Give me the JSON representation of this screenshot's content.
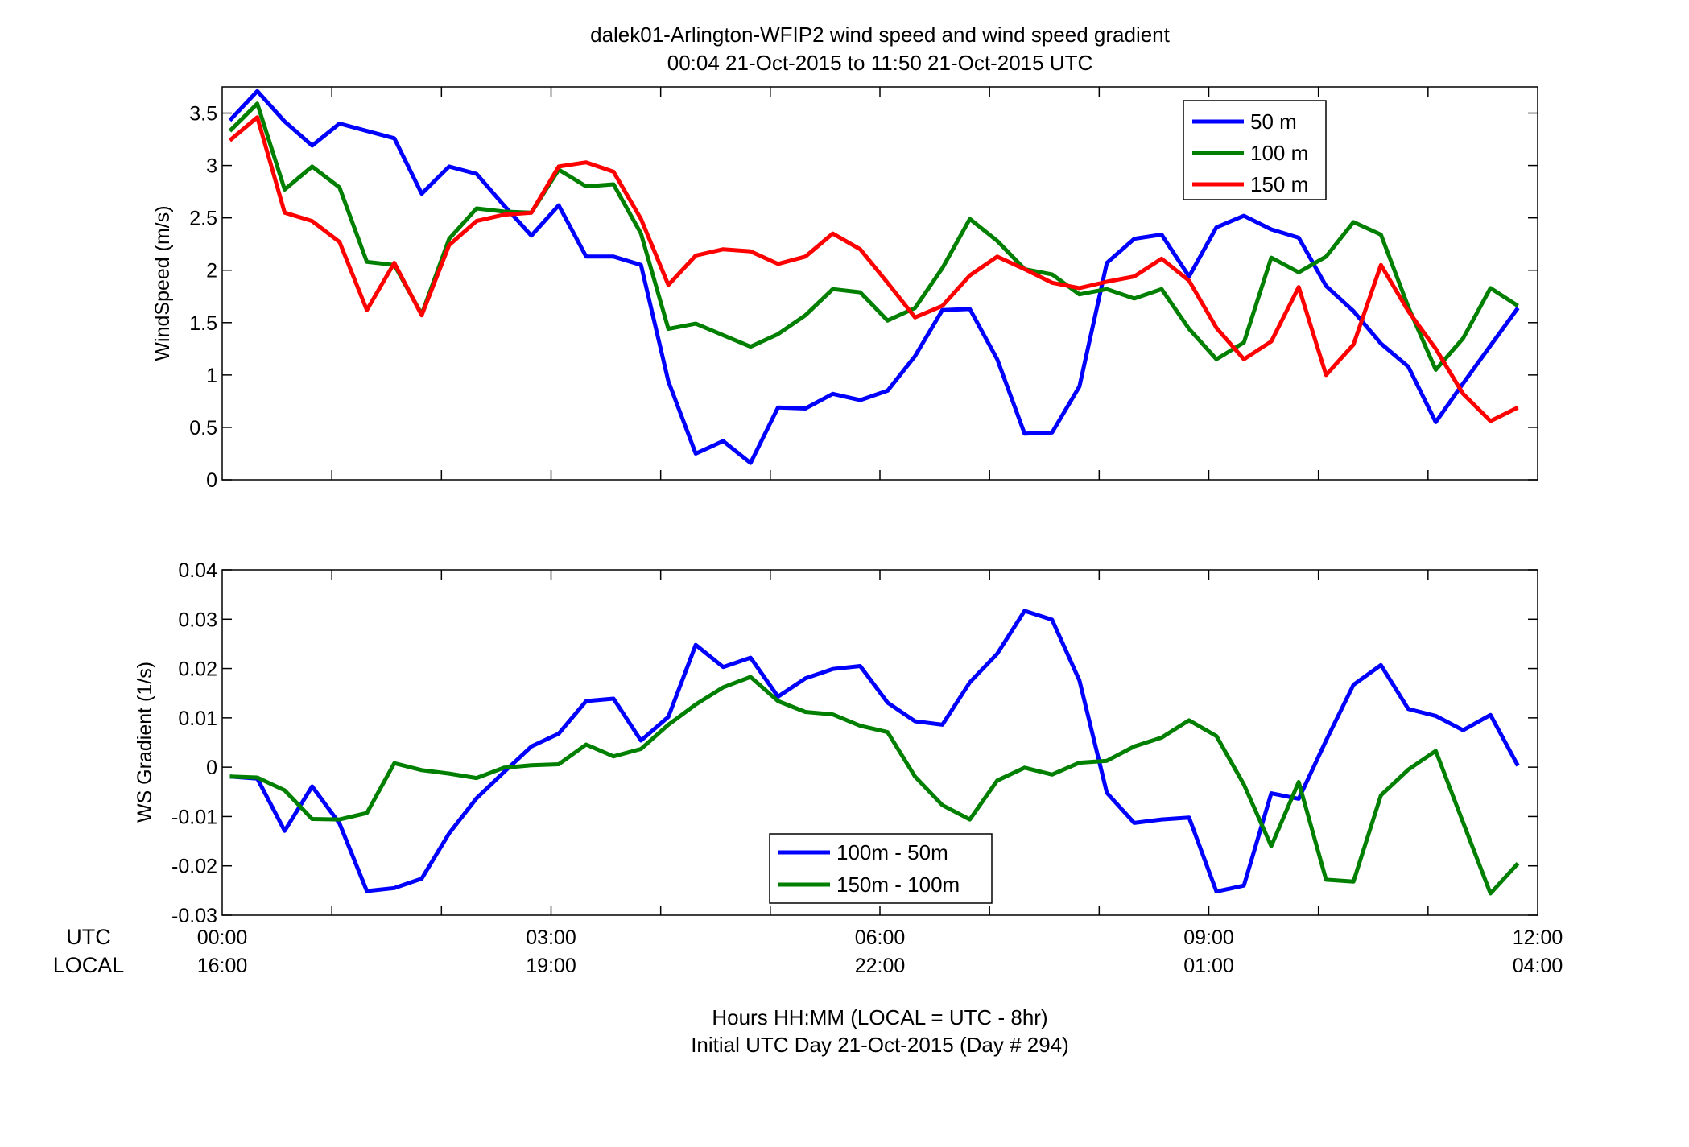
{
  "figure": {
    "title_line1": "dalek01-Arlington-WFIP2  wind speed and wind speed gradient",
    "title_line2": "00:04 21-Oct-2015 to 11:50 21-Oct-2015  UTC",
    "utc_label": "UTC",
    "local_label": "LOCAL",
    "footer_line1": "Hours HH:MM  (LOCAL = UTC - 8hr)",
    "footer_line2": "Initial UTC Day 21-Oct-2015 (Day # 294)",
    "x_ticks_utc": [
      "00:00",
      "03:00",
      "06:00",
      "09:00",
      "12:00"
    ],
    "x_ticks_local": [
      "16:00",
      "19:00",
      "22:00",
      "01:00",
      "04:00"
    ],
    "colors": {
      "blue": "#0000ff",
      "green": "#007f00",
      "red": "#ff0000"
    }
  },
  "chart_data": [
    {
      "type": "line",
      "ylabel": "WindSpeed (m/s)",
      "xlim": [
        0,
        12
      ],
      "ylim": [
        0,
        3.75
      ],
      "yticks": [
        0,
        0.5,
        1,
        1.5,
        2,
        2.5,
        3,
        3.5
      ],
      "ytick_labels": [
        "0",
        "0.5",
        "1",
        "1.5",
        "2",
        "2.5",
        "3",
        "3.5"
      ],
      "grid": false,
      "legend_position": "top-right",
      "x": [
        0.07,
        0.32,
        0.57,
        0.82,
        1.07,
        1.32,
        1.57,
        1.82,
        2.07,
        2.32,
        2.57,
        2.82,
        3.07,
        3.32,
        3.57,
        3.82,
        4.07,
        4.32,
        4.57,
        4.82,
        5.07,
        5.32,
        5.57,
        5.82,
        6.07,
        6.32,
        6.57,
        6.82,
        7.07,
        7.32,
        7.57,
        7.82,
        8.07,
        8.32,
        8.57,
        8.82,
        9.07,
        9.32,
        9.57,
        9.82,
        10.07,
        10.32,
        10.57,
        10.82,
        11.07,
        11.32,
        11.57,
        11.82
      ],
      "series": [
        {
          "name": "50 m",
          "color": "#0000ff",
          "values": [
            3.43,
            3.71,
            3.42,
            3.19,
            3.4,
            3.33,
            3.26,
            2.73,
            2.99,
            2.92,
            2.62,
            2.33,
            2.62,
            2.13,
            2.13,
            2.05,
            0.94,
            0.25,
            0.37,
            0.16,
            0.69,
            0.68,
            0.82,
            0.76,
            0.85,
            1.18,
            1.62,
            1.63,
            1.15,
            0.44,
            0.45,
            0.89,
            2.07,
            2.3,
            2.34,
            1.94,
            2.41,
            2.52,
            2.39,
            2.31,
            1.85,
            1.61,
            1.3,
            1.08,
            0.55,
            0.92,
            1.28,
            1.64
          ]
        },
        {
          "name": "100 m",
          "color": "#007f00",
          "values": [
            3.33,
            3.59,
            2.77,
            2.99,
            2.79,
            2.08,
            2.05,
            1.58,
            2.3,
            2.59,
            2.56,
            2.55,
            2.96,
            2.8,
            2.82,
            2.35,
            1.44,
            1.49,
            1.38,
            1.27,
            1.39,
            1.57,
            1.82,
            1.79,
            1.52,
            1.64,
            2.02,
            2.49,
            2.28,
            2.01,
            1.96,
            1.77,
            1.82,
            1.73,
            1.82,
            1.44,
            1.15,
            1.31,
            2.12,
            1.98,
            2.13,
            2.46,
            2.34,
            1.65,
            1.05,
            1.35,
            1.83,
            1.66
          ]
        },
        {
          "name": "150 m",
          "color": "#ff0000",
          "values": [
            3.24,
            3.46,
            2.55,
            2.47,
            2.27,
            1.62,
            2.07,
            1.57,
            2.24,
            2.47,
            2.53,
            2.55,
            2.99,
            3.03,
            2.94,
            2.49,
            1.86,
            2.14,
            2.2,
            2.18,
            2.06,
            2.13,
            2.35,
            2.2,
            1.88,
            1.55,
            1.66,
            1.95,
            2.13,
            2.01,
            1.88,
            1.83,
            1.89,
            1.94,
            2.11,
            1.9,
            1.45,
            1.15,
            1.32,
            1.84,
            1.0,
            1.29,
            2.05,
            1.61,
            1.25,
            0.82,
            0.56,
            0.69
          ]
        }
      ]
    },
    {
      "type": "line",
      "ylabel": "WS Gradient (1/s)",
      "xlim": [
        0,
        12
      ],
      "ylim": [
        -0.03,
        0.04
      ],
      "yticks": [
        -0.03,
        -0.02,
        -0.01,
        0,
        0.01,
        0.02,
        0.03,
        0.04
      ],
      "ytick_labels": [
        "-0.03",
        "-0.02",
        "-0.01",
        "0",
        "0.01",
        "0.02",
        "0.03",
        "0.04"
      ],
      "grid": false,
      "legend_position": "bottom-center",
      "x": [
        0.07,
        0.32,
        0.57,
        0.82,
        1.07,
        1.32,
        1.57,
        1.82,
        2.07,
        2.32,
        2.57,
        2.82,
        3.07,
        3.32,
        3.57,
        3.82,
        4.07,
        4.32,
        4.57,
        4.82,
        5.07,
        5.32,
        5.57,
        5.82,
        6.07,
        6.32,
        6.57,
        6.82,
        7.07,
        7.32,
        7.57,
        7.82,
        8.07,
        8.32,
        8.57,
        8.82,
        9.07,
        9.32,
        9.57,
        9.82,
        10.07,
        10.32,
        10.57,
        10.82,
        11.07,
        11.32,
        11.57,
        11.82
      ],
      "series": [
        {
          "name": "100m - 50m",
          "color": "#0000ff",
          "values": [
            -0.0019,
            -0.0023,
            -0.0129,
            -0.0039,
            -0.0114,
            -0.0251,
            -0.0245,
            -0.0226,
            -0.0134,
            -0.0063,
            -0.001,
            0.0042,
            0.0068,
            0.0134,
            0.0139,
            0.0054,
            0.0102,
            0.0248,
            0.0203,
            0.0222,
            0.0143,
            0.018,
            0.0199,
            0.0205,
            0.0131,
            0.0093,
            0.0086,
            0.0172,
            0.023,
            0.0317,
            0.0299,
            0.0176,
            -0.0052,
            -0.0113,
            -0.0106,
            -0.0102,
            -0.0252,
            -0.024,
            -0.0053,
            -0.0064,
            0.0054,
            0.0167,
            0.0207,
            0.0118,
            0.0104,
            0.0075,
            0.0106,
            0.0003
          ]
        },
        {
          "name": "150m - 100m",
          "color": "#007f00",
          "values": [
            -0.0019,
            -0.0021,
            -0.0047,
            -0.0105,
            -0.0106,
            -0.0093,
            0.0008,
            -0.0006,
            -0.0013,
            -0.0022,
            -0.0001,
            0.0004,
            0.0006,
            0.0046,
            0.0022,
            0.0037,
            0.0086,
            0.0127,
            0.0162,
            0.0183,
            0.0134,
            0.0112,
            0.0107,
            0.0084,
            0.0071,
            -0.0019,
            -0.0077,
            -0.0106,
            -0.0027,
            -0.0001,
            -0.0015,
            0.0009,
            0.0013,
            0.0042,
            0.006,
            0.0095,
            0.0063,
            -0.0035,
            -0.016,
            -0.003,
            -0.0228,
            -0.0232,
            -0.0057,
            -0.0005,
            0.0033,
            -0.0112,
            -0.0256,
            -0.0195
          ]
        }
      ]
    }
  ]
}
